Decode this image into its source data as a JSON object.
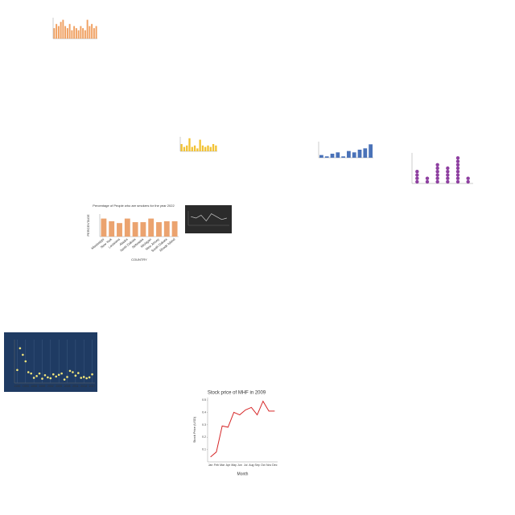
{
  "chart_data": [
    {
      "type": "bar",
      "color": "#f0a060",
      "values": [
        5,
        7,
        6,
        8,
        9,
        6,
        5,
        7,
        4,
        6,
        5,
        4,
        6,
        5,
        4,
        9,
        6,
        7,
        5,
        6
      ],
      "ylim": [
        0,
        10
      ]
    },
    {
      "type": "bar",
      "color": "#f2c233",
      "values": [
        5,
        3,
        4,
        9,
        3,
        4,
        2,
        8,
        4,
        3,
        4,
        3,
        5,
        4
      ],
      "ylim": [
        0,
        10
      ]
    },
    {
      "type": "bar",
      "color": "#4a72b8",
      "values": [
        2,
        1,
        3,
        4,
        1,
        5,
        4,
        6,
        7,
        10
      ],
      "ylim": [
        0,
        12
      ]
    },
    {
      "type": "dot",
      "color": "#8e3fa0",
      "values": [
        4,
        2,
        6,
        5,
        8,
        2
      ],
      "ylim": [
        0,
        9
      ]
    },
    {
      "type": "bar",
      "color": "#eba36f",
      "title": "Percentage of People who are smokers for the year 2022",
      "ylabel": "PERCENTAGE",
      "xlabel": "COUNTRY",
      "categories": [
        "Mississippi",
        "New York",
        "Louisiana",
        "Alaska",
        "North Dakota",
        "Nebraska",
        "Michigan",
        "New Jersey",
        "South Dakota",
        "Rhode Island"
      ],
      "values": [
        20,
        17,
        15,
        20,
        16,
        16,
        20,
        16,
        17,
        17
      ],
      "ylim": [
        0,
        25
      ]
    },
    {
      "type": "line",
      "color": "#cccccc",
      "background": "#2b2b2b",
      "values": [
        6,
        5,
        7,
        3,
        8,
        6,
        4,
        5
      ],
      "ylim": [
        0,
        10
      ]
    },
    {
      "type": "scatter",
      "color": "#f5e77a",
      "background": "#1f3b63",
      "x": [
        1990,
        1991,
        1992,
        1993,
        1994,
        1995,
        1996,
        1997,
        1998,
        1999,
        2000,
        2001,
        2002,
        2003,
        2004,
        2005,
        2006,
        2007,
        2008,
        2009,
        2010,
        2011,
        2012,
        2013,
        2014,
        2015,
        2016,
        2017
      ],
      "values": [
        30,
        80,
        65,
        50,
        25,
        22,
        12,
        16,
        22,
        10,
        18,
        13,
        11,
        20,
        15,
        19,
        22,
        8,
        14,
        28,
        25,
        17,
        23,
        12,
        14,
        11,
        13,
        20
      ],
      "xlim": [
        1989,
        2018
      ],
      "ylim": [
        0,
        100
      ],
      "xticks": [
        1990,
        1993,
        1996,
        1999,
        2002,
        2005,
        2008,
        2011,
        2014,
        2017
      ]
    },
    {
      "type": "line",
      "color": "#d62728",
      "title": "Stock price of MHF in 2009",
      "xlabel": "Month",
      "ylabel": "Stock Price (USD)",
      "categories": [
        "Jan",
        "Feb",
        "Mar",
        "Apr",
        "May",
        "Jun",
        "Jul",
        "Aug",
        "Sep",
        "Oct",
        "Nov",
        "Dec"
      ],
      "values": [
        0.04,
        0.08,
        0.29,
        0.28,
        0.4,
        0.38,
        0.42,
        0.44,
        0.38,
        0.49,
        0.41,
        0.41
      ],
      "ylim": [
        0,
        0.52
      ],
      "yticks": [
        0.1,
        0.2,
        0.3,
        0.4,
        0.5
      ]
    }
  ]
}
